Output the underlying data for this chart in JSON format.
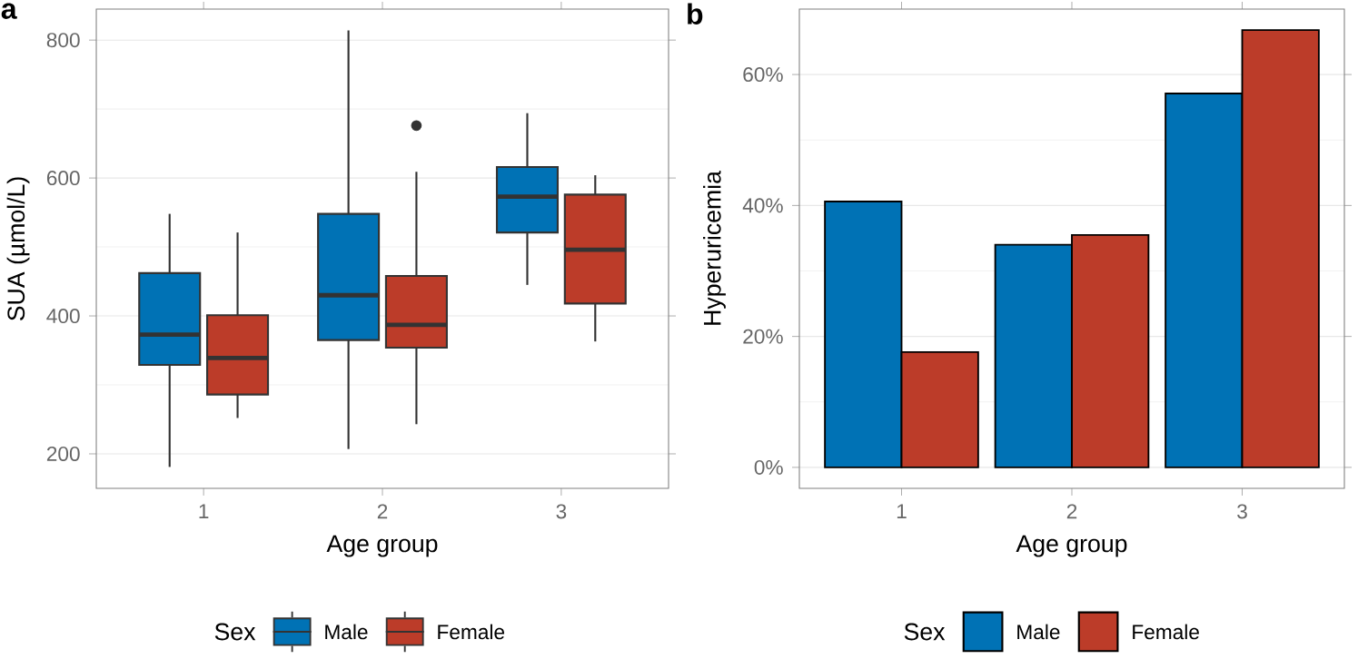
{
  "chart_data": [
    {
      "type": "box",
      "title": "a",
      "xlabel": "Age group",
      "ylabel": "SUA (µmol/L)",
      "legend_title": "Sex",
      "legend": "bottom",
      "grid": "y",
      "categories": [
        "1",
        "2",
        "3"
      ],
      "ylim": [
        150,
        845
      ],
      "yticks": [
        200,
        400,
        600,
        800
      ],
      "series": [
        {
          "name": "Male",
          "color": "#0072b5",
          "boxes": [
            {
              "low": 181,
              "q1": 329,
              "median": 373,
              "q3": 462,
              "high": 548
            },
            {
              "low": 207,
              "q1": 365,
              "median": 430,
              "q3": 548,
              "high": 814
            },
            {
              "low": 445,
              "q1": 521,
              "median": 573,
              "q3": 616,
              "high": 694
            }
          ]
        },
        {
          "name": "Female",
          "color": "#bc3c29",
          "boxes": [
            {
              "low": 252,
              "q1": 286,
              "median": 339,
              "q3": 401,
              "high": 521
            },
            {
              "low": 243,
              "q1": 354,
              "median": 387,
              "q3": 458,
              "high": 609,
              "outliers": [
                676
              ]
            },
            {
              "low": 363,
              "q1": 418,
              "median": 496,
              "q3": 576,
              "high": 604
            }
          ]
        }
      ]
    },
    {
      "type": "bar",
      "title": "b",
      "xlabel": "Age group",
      "ylabel": "Hyperuricemia",
      "legend_title": "Sex",
      "legend": "bottom",
      "grid": "y",
      "categories": [
        "1",
        "2",
        "3"
      ],
      "ylim": [
        -3.2,
        70
      ],
      "yticks": [
        {
          "value": 0,
          "label": "0%"
        },
        {
          "value": 20,
          "label": "20%"
        },
        {
          "value": 40,
          "label": "40%"
        },
        {
          "value": 60,
          "label": "60%"
        }
      ],
      "series": [
        {
          "name": "Male",
          "color": "#0072b5",
          "values": [
            40.6,
            34.0,
            57.1
          ]
        },
        {
          "name": "Female",
          "color": "#bc3c29",
          "values": [
            17.6,
            35.5,
            66.8
          ]
        }
      ]
    }
  ]
}
